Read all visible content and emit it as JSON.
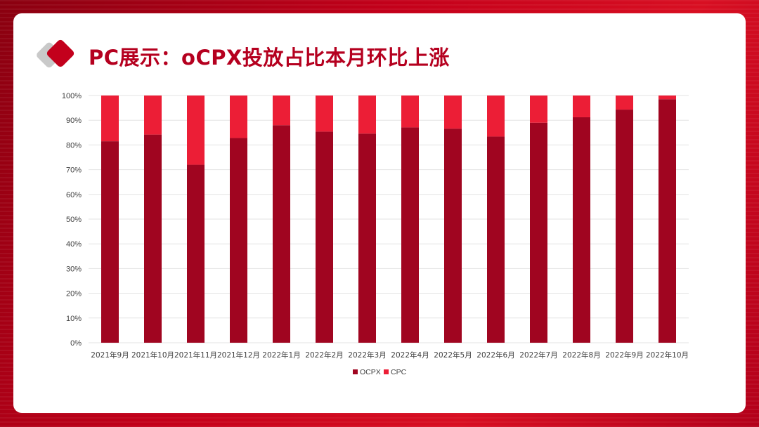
{
  "page": {
    "title": "PC展示：oCPX投放占比本月环比上涨"
  },
  "colors": {
    "ocpx": "#a00520",
    "cpc": "#ec1e36",
    "title": "#b5001f",
    "grid": "#e3e3e3"
  },
  "icons": {
    "logo": "double-diamond-icon"
  },
  "chart_data": {
    "type": "bar",
    "stacked": true,
    "percent_stacked": true,
    "categories": [
      "2021年9月",
      "2021年10月",
      "2021年11月",
      "2021年12月",
      "2022年1月",
      "2022年2月",
      "2022年3月",
      "2022年4月",
      "2022年5月",
      "2022年6月",
      "2022年7月",
      "2022年8月",
      "2022年9月",
      "2022年10月"
    ],
    "series": [
      {
        "name": "OCPX",
        "values": [
          81.5,
          84.2,
          72.0,
          82.8,
          88.0,
          85.4,
          84.6,
          87.1,
          86.6,
          83.4,
          89.0,
          91.2,
          94.3,
          98.5
        ]
      },
      {
        "name": "CPC",
        "values": [
          18.5,
          15.8,
          28.0,
          17.2,
          12.0,
          14.6,
          15.4,
          12.9,
          13.4,
          16.6,
          11.0,
          8.8,
          5.7,
          1.5
        ]
      }
    ],
    "yticks": [
      "0%",
      "10%",
      "20%",
      "30%",
      "40%",
      "50%",
      "60%",
      "70%",
      "80%",
      "90%",
      "100%"
    ],
    "ylim": [
      0,
      100
    ],
    "grid": true,
    "legend": "bottom"
  }
}
